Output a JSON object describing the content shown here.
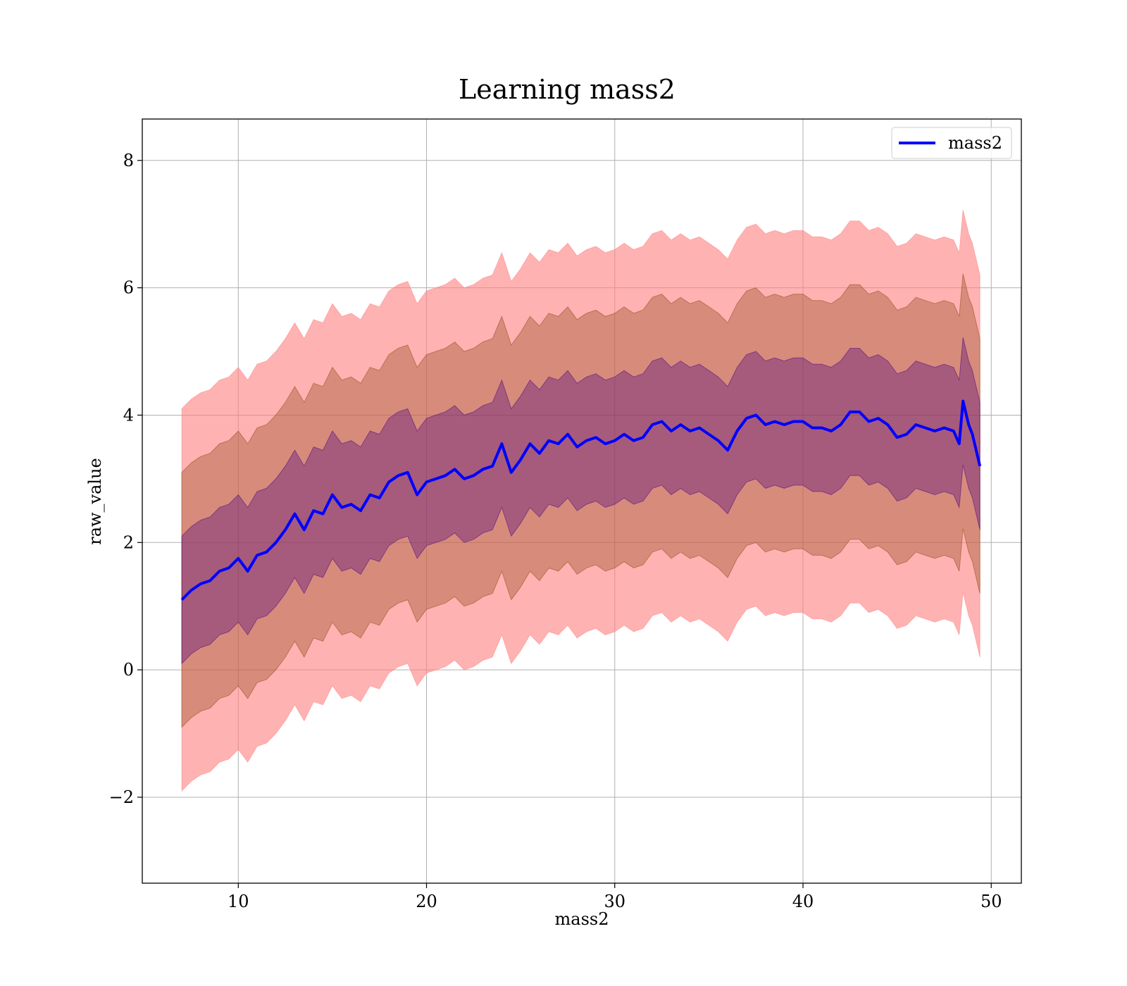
{
  "chart_data": {
    "type": "area",
    "title": "Learning mass2",
    "xlabel": "mass2",
    "ylabel": "raw_value",
    "xlim": [
      4.9,
      51.6
    ],
    "ylim": [
      -3.35,
      8.65
    ],
    "grid": true,
    "legend_position": "upper right",
    "x_ticks": [
      10,
      20,
      30,
      40,
      50
    ],
    "y_ticks": [
      -2,
      0,
      2,
      4,
      6,
      8
    ],
    "x_tick_labels": [
      "10",
      "20",
      "30",
      "40",
      "50"
    ],
    "y_tick_labels": [
      "−2",
      "0",
      "2",
      "4",
      "6",
      "8"
    ],
    "colors": {
      "line": "#0000ff",
      "band_outer": "#ff7f7f",
      "band_mid": "#8b4513",
      "band_inner": "#4b0082",
      "grid": "#b0b0b0"
    },
    "band_offsets": [
      1.0,
      2.0,
      3.0
    ],
    "series": [
      {
        "name": "mass2",
        "x": [
          7.0,
          7.5,
          8.0,
          8.5,
          9.0,
          9.5,
          10.0,
          10.5,
          11.0,
          11.5,
          12.0,
          12.5,
          13.0,
          13.5,
          14.0,
          14.5,
          15.0,
          15.5,
          16.0,
          16.5,
          17.0,
          17.5,
          18.0,
          18.5,
          19.0,
          19.5,
          20.0,
          20.5,
          21.0,
          21.5,
          22.0,
          22.5,
          23.0,
          23.5,
          24.0,
          24.5,
          25.0,
          25.5,
          26.0,
          26.5,
          27.0,
          27.5,
          28.0,
          28.5,
          29.0,
          29.5,
          30.0,
          30.5,
          31.0,
          31.5,
          32.0,
          32.5,
          33.0,
          33.5,
          34.0,
          34.5,
          35.0,
          35.5,
          36.0,
          36.5,
          37.0,
          37.5,
          38.0,
          38.5,
          39.0,
          39.5,
          40.0,
          40.5,
          41.0,
          41.5,
          42.0,
          42.5,
          43.0,
          43.5,
          44.0,
          44.5,
          45.0,
          45.5,
          46.0,
          46.5,
          47.0,
          47.5,
          48.0,
          48.3,
          48.5,
          48.8,
          49.0,
          49.4
        ],
        "y": [
          1.1,
          1.25,
          1.35,
          1.4,
          1.55,
          1.6,
          1.75,
          1.55,
          1.8,
          1.85,
          2.0,
          2.2,
          2.45,
          2.2,
          2.5,
          2.45,
          2.75,
          2.55,
          2.6,
          2.5,
          2.75,
          2.7,
          2.95,
          3.05,
          3.1,
          2.75,
          2.95,
          3.0,
          3.05,
          3.15,
          3.0,
          3.05,
          3.15,
          3.2,
          3.55,
          3.1,
          3.3,
          3.55,
          3.4,
          3.6,
          3.55,
          3.7,
          3.5,
          3.6,
          3.65,
          3.55,
          3.6,
          3.7,
          3.6,
          3.65,
          3.85,
          3.9,
          3.75,
          3.85,
          3.75,
          3.8,
          3.7,
          3.6,
          3.45,
          3.75,
          3.95,
          4.0,
          3.85,
          3.9,
          3.85,
          3.9,
          3.9,
          3.8,
          3.8,
          3.75,
          3.85,
          4.05,
          4.05,
          3.9,
          3.95,
          3.85,
          3.65,
          3.7,
          3.85,
          3.8,
          3.75,
          3.8,
          3.75,
          3.55,
          4.22,
          3.85,
          3.7,
          3.2
        ]
      }
    ]
  }
}
